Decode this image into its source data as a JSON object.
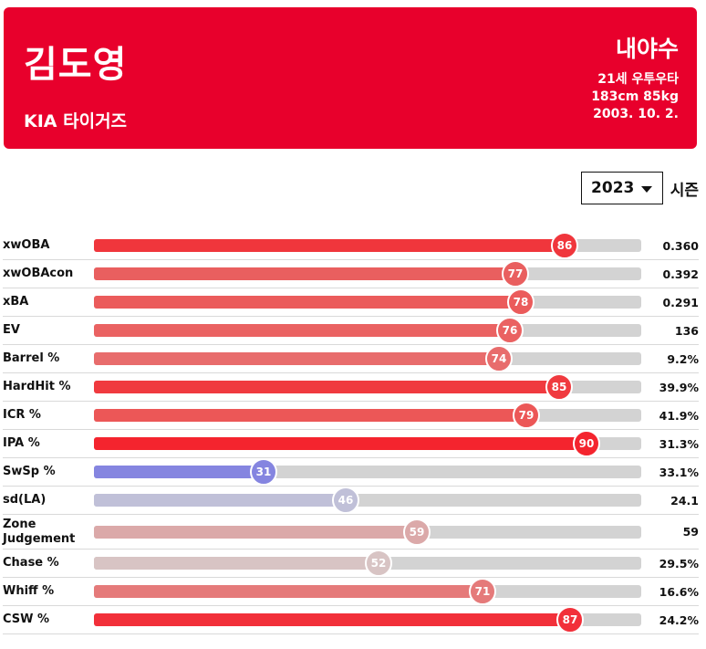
{
  "player": {
    "name": "김도영",
    "team": "KIA 타이거즈",
    "position": "내야수",
    "age_hand": "21세 우투우타",
    "body": "183cm 85kg",
    "birth": "2003. 10. 2."
  },
  "season": {
    "selected": "2023",
    "label": "시즌"
  },
  "metrics": [
    {
      "label": "xwOBA",
      "percentile": 86,
      "value": "0.360",
      "color": "#f0363c"
    },
    {
      "label": "xwOBAcon",
      "percentile": 77,
      "value": "0.392",
      "color": "#e95f5f"
    },
    {
      "label": "xBA",
      "percentile": 78,
      "value": "0.291",
      "color": "#eb5b5b"
    },
    {
      "label": "EV",
      "percentile": 76,
      "value": "136",
      "color": "#ea6262"
    },
    {
      "label": "Barrel %",
      "percentile": 74,
      "value": "9.2%",
      "color": "#e86c6c"
    },
    {
      "label": "HardHit %",
      "percentile": 85,
      "value": "39.9%",
      "color": "#f03a3f"
    },
    {
      "label": "ICR %",
      "percentile": 79,
      "value": "41.9%",
      "color": "#ec5757"
    },
    {
      "label": "IPA %",
      "percentile": 90,
      "value": "31.3%",
      "color": "#f4242e"
    },
    {
      "label": "SwSp %",
      "percentile": 31,
      "value": "33.1%",
      "color": "#8585e0"
    },
    {
      "label": "sd(LA)",
      "percentile": 46,
      "value": "24.1",
      "color": "#c0c0d8"
    },
    {
      "label": "Zone Judgement",
      "percentile": 59,
      "value": "59",
      "color": "#dba9a9"
    },
    {
      "label": "Chase %",
      "percentile": 52,
      "value": "29.5%",
      "color": "#d8c4c4"
    },
    {
      "label": "Whiff %",
      "percentile": 71,
      "value": "16.6%",
      "color": "#e57a7a"
    },
    {
      "label": "CSW %",
      "percentile": 87,
      "value": "24.2%",
      "color": "#f2303a"
    }
  ]
}
